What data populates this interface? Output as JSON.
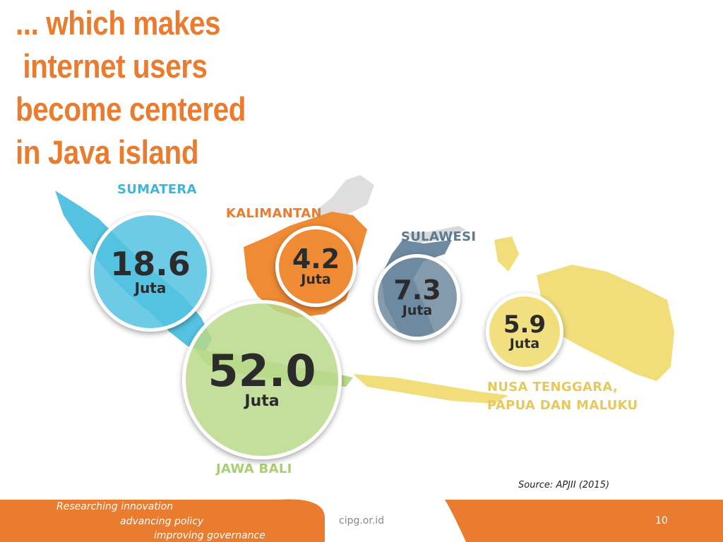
{
  "slide": {
    "title_lines": [
      "... which makes",
      "internet users",
      "become centered",
      "in Java island"
    ],
    "source": "Source: APJII (2015)"
  },
  "regions": {
    "sumatera": {
      "name": "SUMATERA",
      "value": "18.6",
      "unit": "Juta",
      "color": "#55c2e1"
    },
    "kalimantan": {
      "name": "KALIMANTAN",
      "value": "4.2",
      "unit": "Juta",
      "color": "#ef8a35"
    },
    "sulawesi": {
      "name": "SULAWESI",
      "value": "7.3",
      "unit": "Juta",
      "color": "#6e8aa0"
    },
    "jawa_bali": {
      "name": "JAWA BALI",
      "value": "52.0",
      "unit": "Juta",
      "color": "#b8d98a"
    },
    "nusa": {
      "name_line1": "NUSA TENGGARA,",
      "name_line2": "PAPUA DAN MALUKU",
      "value": "5.9",
      "unit": "Juta",
      "color": "#f1dd79"
    }
  },
  "footer": {
    "tagline": [
      "Researching innovation",
      "advancing policy",
      "improving governance"
    ],
    "site": "cipg.or.id",
    "page": "10",
    "accent": "#ea7c2f"
  }
}
